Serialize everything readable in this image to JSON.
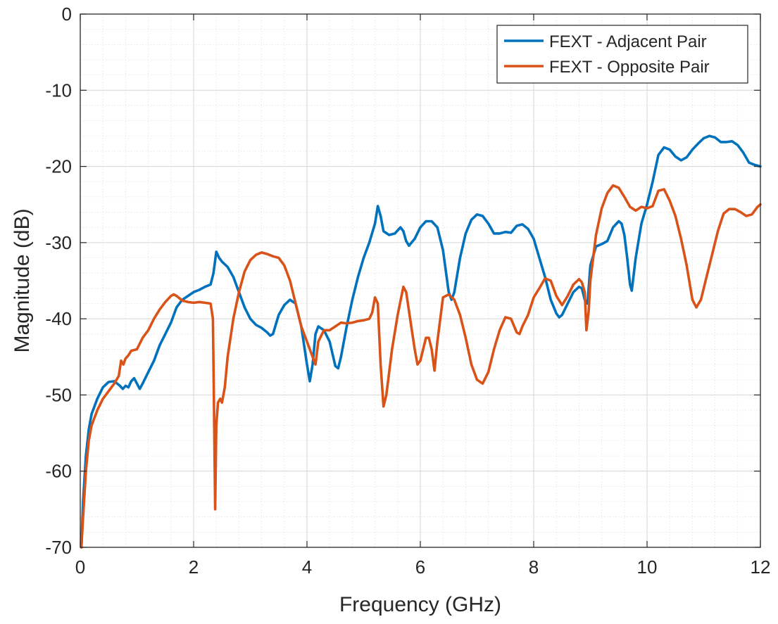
{
  "chart_data": {
    "type": "line",
    "title": "",
    "xlabel": "Frequency (GHz)",
    "ylabel": "Magnitude (dB)",
    "xlim": [
      0,
      12
    ],
    "ylim": [
      -70,
      0
    ],
    "xticks": [
      0,
      2,
      4,
      6,
      8,
      10,
      12
    ],
    "yticks": [
      0,
      -10,
      -20,
      -30,
      -40,
      -50,
      -60,
      -70
    ],
    "xtick_labels": [
      "0",
      "2",
      "4",
      "6",
      "8",
      "10",
      "12"
    ],
    "ytick_labels": [
      "0",
      "-10",
      "-20",
      "-30",
      "-40",
      "-50",
      "-60",
      "-70"
    ],
    "grid": true,
    "minor_grid": true,
    "legend_position": "top-right",
    "series": [
      {
        "name": "FEXT - Adjacent Pair",
        "color": "#0072BD",
        "points": [
          [
            0.02,
            -70
          ],
          [
            0.05,
            -64
          ],
          [
            0.1,
            -58
          ],
          [
            0.15,
            -54.5
          ],
          [
            0.2,
            -52.5
          ],
          [
            0.3,
            -50.5
          ],
          [
            0.4,
            -49
          ],
          [
            0.5,
            -48.3
          ],
          [
            0.6,
            -48.2
          ],
          [
            0.7,
            -48.8
          ],
          [
            0.75,
            -49.2
          ],
          [
            0.8,
            -48.8
          ],
          [
            0.85,
            -49
          ],
          [
            0.9,
            -48.2
          ],
          [
            0.95,
            -47.8
          ],
          [
            1.0,
            -48.5
          ],
          [
            1.05,
            -49.2
          ],
          [
            1.1,
            -48.5
          ],
          [
            1.2,
            -47
          ],
          [
            1.3,
            -45.5
          ],
          [
            1.4,
            -43.5
          ],
          [
            1.5,
            -42
          ],
          [
            1.6,
            -40.5
          ],
          [
            1.7,
            -38.5
          ],
          [
            1.8,
            -37.5
          ],
          [
            1.9,
            -37
          ],
          [
            2.0,
            -36.5
          ],
          [
            2.1,
            -36.2
          ],
          [
            2.2,
            -35.8
          ],
          [
            2.3,
            -35.5
          ],
          [
            2.35,
            -34
          ],
          [
            2.4,
            -31.2
          ],
          [
            2.45,
            -32
          ],
          [
            2.5,
            -32.5
          ],
          [
            2.6,
            -33.2
          ],
          [
            2.7,
            -34.5
          ],
          [
            2.8,
            -36.5
          ],
          [
            2.9,
            -38.5
          ],
          [
            3.0,
            -40
          ],
          [
            3.1,
            -40.8
          ],
          [
            3.2,
            -41.2
          ],
          [
            3.3,
            -41.8
          ],
          [
            3.35,
            -42.2
          ],
          [
            3.4,
            -42
          ],
          [
            3.5,
            -39.5
          ],
          [
            3.6,
            -38.2
          ],
          [
            3.7,
            -37.5
          ],
          [
            3.8,
            -38
          ],
          [
            3.9,
            -41
          ],
          [
            4.0,
            -46
          ],
          [
            4.05,
            -48.2
          ],
          [
            4.1,
            -46
          ],
          [
            4.15,
            -42
          ],
          [
            4.2,
            -41
          ],
          [
            4.3,
            -41.5
          ],
          [
            4.4,
            -43
          ],
          [
            4.5,
            -46.2
          ],
          [
            4.55,
            -46.5
          ],
          [
            4.6,
            -45
          ],
          [
            4.7,
            -41
          ],
          [
            4.8,
            -37.5
          ],
          [
            4.9,
            -34.5
          ],
          [
            5.0,
            -32
          ],
          [
            5.1,
            -30
          ],
          [
            5.2,
            -27.5
          ],
          [
            5.25,
            -25.2
          ],
          [
            5.3,
            -26.5
          ],
          [
            5.35,
            -28.5
          ],
          [
            5.45,
            -29
          ],
          [
            5.55,
            -28.8
          ],
          [
            5.65,
            -28
          ],
          [
            5.7,
            -28.5
          ],
          [
            5.75,
            -29.8
          ],
          [
            5.8,
            -30.4
          ],
          [
            5.9,
            -29.5
          ],
          [
            6.0,
            -28
          ],
          [
            6.1,
            -27.2
          ],
          [
            6.2,
            -27.2
          ],
          [
            6.3,
            -28
          ],
          [
            6.4,
            -31
          ],
          [
            6.5,
            -36.5
          ],
          [
            6.55,
            -37.5
          ],
          [
            6.6,
            -36.5
          ],
          [
            6.7,
            -32
          ],
          [
            6.8,
            -28.8
          ],
          [
            6.9,
            -27
          ],
          [
            7.0,
            -26.3
          ],
          [
            7.1,
            -26.5
          ],
          [
            7.2,
            -27.5
          ],
          [
            7.3,
            -28.8
          ],
          [
            7.4,
            -28.8
          ],
          [
            7.5,
            -28.6
          ],
          [
            7.6,
            -28.7
          ],
          [
            7.7,
            -27.8
          ],
          [
            7.8,
            -27.6
          ],
          [
            7.9,
            -28.2
          ],
          [
            8.0,
            -29.5
          ],
          [
            8.1,
            -32
          ],
          [
            8.2,
            -34.5
          ],
          [
            8.3,
            -37.5
          ],
          [
            8.4,
            -39.3
          ],
          [
            8.45,
            -39.8
          ],
          [
            8.5,
            -39.5
          ],
          [
            8.6,
            -38
          ],
          [
            8.7,
            -36.5
          ],
          [
            8.8,
            -35.8
          ],
          [
            8.85,
            -36
          ],
          [
            8.9,
            -37.5
          ],
          [
            8.95,
            -38
          ],
          [
            9.0,
            -33
          ],
          [
            9.1,
            -30.5
          ],
          [
            9.2,
            -30.2
          ],
          [
            9.3,
            -29.8
          ],
          [
            9.4,
            -28
          ],
          [
            9.5,
            -27.2
          ],
          [
            9.55,
            -27.5
          ],
          [
            9.6,
            -29
          ],
          [
            9.65,
            -32
          ],
          [
            9.7,
            -35.5
          ],
          [
            9.73,
            -36.3
          ],
          [
            9.8,
            -32
          ],
          [
            9.9,
            -27.5
          ],
          [
            10.0,
            -25
          ],
          [
            10.1,
            -22
          ],
          [
            10.2,
            -18.5
          ],
          [
            10.3,
            -17.5
          ],
          [
            10.4,
            -17.8
          ],
          [
            10.5,
            -18.7
          ],
          [
            10.6,
            -19.2
          ],
          [
            10.7,
            -18.8
          ],
          [
            10.8,
            -17.8
          ],
          [
            10.9,
            -17
          ],
          [
            11.0,
            -16.3
          ],
          [
            11.1,
            -16
          ],
          [
            11.2,
            -16.2
          ],
          [
            11.3,
            -16.8
          ],
          [
            11.4,
            -16.8
          ],
          [
            11.5,
            -16.7
          ],
          [
            11.6,
            -17.2
          ],
          [
            11.7,
            -18.2
          ],
          [
            11.8,
            -19.5
          ],
          [
            11.9,
            -19.8
          ],
          [
            12.0,
            -20
          ]
        ]
      },
      {
        "name": "FEXT - Opposite Pair",
        "color": "#D95319",
        "points": [
          [
            0.02,
            -70
          ],
          [
            0.05,
            -66
          ],
          [
            0.1,
            -60
          ],
          [
            0.15,
            -56
          ],
          [
            0.2,
            -54
          ],
          [
            0.3,
            -52
          ],
          [
            0.4,
            -50.5
          ],
          [
            0.5,
            -49.5
          ],
          [
            0.6,
            -48.5
          ],
          [
            0.68,
            -47.5
          ],
          [
            0.72,
            -45.5
          ],
          [
            0.76,
            -46
          ],
          [
            0.8,
            -45.2
          ],
          [
            0.85,
            -44.8
          ],
          [
            0.9,
            -44.2
          ],
          [
            1.0,
            -44
          ],
          [
            1.1,
            -42.5
          ],
          [
            1.2,
            -41.5
          ],
          [
            1.3,
            -40
          ],
          [
            1.4,
            -38.8
          ],
          [
            1.5,
            -37.8
          ],
          [
            1.6,
            -37
          ],
          [
            1.65,
            -36.8
          ],
          [
            1.7,
            -37
          ],
          [
            1.8,
            -37.6
          ],
          [
            1.9,
            -37.8
          ],
          [
            2.0,
            -37.9
          ],
          [
            2.1,
            -37.8
          ],
          [
            2.2,
            -37.9
          ],
          [
            2.3,
            -38
          ],
          [
            2.34,
            -40
          ],
          [
            2.36,
            -52
          ],
          [
            2.38,
            -65
          ],
          [
            2.4,
            -54
          ],
          [
            2.43,
            -51
          ],
          [
            2.47,
            -50.5
          ],
          [
            2.5,
            -51
          ],
          [
            2.55,
            -49
          ],
          [
            2.6,
            -45
          ],
          [
            2.7,
            -40
          ],
          [
            2.8,
            -36.5
          ],
          [
            2.9,
            -33.8
          ],
          [
            3.0,
            -32.3
          ],
          [
            3.1,
            -31.6
          ],
          [
            3.2,
            -31.3
          ],
          [
            3.3,
            -31.5
          ],
          [
            3.4,
            -31.8
          ],
          [
            3.5,
            -32
          ],
          [
            3.6,
            -33
          ],
          [
            3.7,
            -35
          ],
          [
            3.8,
            -38
          ],
          [
            3.9,
            -41
          ],
          [
            4.0,
            -43
          ],
          [
            4.1,
            -45
          ],
          [
            4.15,
            -46
          ],
          [
            4.2,
            -43
          ],
          [
            4.3,
            -41.5
          ],
          [
            4.4,
            -41.5
          ],
          [
            4.5,
            -41
          ],
          [
            4.6,
            -40.5
          ],
          [
            4.7,
            -40.6
          ],
          [
            4.8,
            -40.5
          ],
          [
            4.9,
            -40.3
          ],
          [
            5.0,
            -40.2
          ],
          [
            5.1,
            -40
          ],
          [
            5.15,
            -39.2
          ],
          [
            5.2,
            -37.2
          ],
          [
            5.25,
            -38
          ],
          [
            5.3,
            -46
          ],
          [
            5.35,
            -51.5
          ],
          [
            5.4,
            -50
          ],
          [
            5.5,
            -44
          ],
          [
            5.6,
            -39.5
          ],
          [
            5.7,
            -35.8
          ],
          [
            5.75,
            -36.5
          ],
          [
            5.8,
            -39
          ],
          [
            5.9,
            -44
          ],
          [
            5.95,
            -46
          ],
          [
            6.0,
            -45.5
          ],
          [
            6.1,
            -42.5
          ],
          [
            6.15,
            -42.5
          ],
          [
            6.2,
            -44
          ],
          [
            6.25,
            -46.8
          ],
          [
            6.3,
            -43
          ],
          [
            6.4,
            -37.2
          ],
          [
            6.5,
            -36.8
          ],
          [
            6.6,
            -37.5
          ],
          [
            6.7,
            -39.5
          ],
          [
            6.8,
            -42.5
          ],
          [
            6.9,
            -46
          ],
          [
            7.0,
            -48
          ],
          [
            7.1,
            -48.5
          ],
          [
            7.2,
            -47
          ],
          [
            7.3,
            -44
          ],
          [
            7.4,
            -41.5
          ],
          [
            7.5,
            -39.8
          ],
          [
            7.6,
            -40
          ],
          [
            7.7,
            -41.8
          ],
          [
            7.75,
            -42
          ],
          [
            7.8,
            -41
          ],
          [
            7.9,
            -39.5
          ],
          [
            8.0,
            -37.2
          ],
          [
            8.1,
            -36
          ],
          [
            8.2,
            -34.7
          ],
          [
            8.3,
            -35
          ],
          [
            8.4,
            -37
          ],
          [
            8.5,
            -38.2
          ],
          [
            8.6,
            -37
          ],
          [
            8.7,
            -35.5
          ],
          [
            8.8,
            -34.8
          ],
          [
            8.85,
            -35.2
          ],
          [
            8.9,
            -36.5
          ],
          [
            8.93,
            -41.5
          ],
          [
            8.97,
            -39
          ],
          [
            9.0,
            -35
          ],
          [
            9.1,
            -29
          ],
          [
            9.2,
            -25.5
          ],
          [
            9.3,
            -23.5
          ],
          [
            9.4,
            -22.5
          ],
          [
            9.5,
            -22.8
          ],
          [
            9.6,
            -24
          ],
          [
            9.7,
            -25.3
          ],
          [
            9.8,
            -25.8
          ],
          [
            9.9,
            -25.3
          ],
          [
            10.0,
            -25.5
          ],
          [
            10.1,
            -25.2
          ],
          [
            10.2,
            -23.2
          ],
          [
            10.3,
            -23
          ],
          [
            10.4,
            -24.5
          ],
          [
            10.5,
            -26.5
          ],
          [
            10.6,
            -29.5
          ],
          [
            10.7,
            -33
          ],
          [
            10.8,
            -37.5
          ],
          [
            10.87,
            -38.5
          ],
          [
            10.95,
            -37.5
          ],
          [
            11.05,
            -34.5
          ],
          [
            11.15,
            -31.5
          ],
          [
            11.25,
            -28.5
          ],
          [
            11.35,
            -26.2
          ],
          [
            11.45,
            -25.6
          ],
          [
            11.55,
            -25.6
          ],
          [
            11.65,
            -26
          ],
          [
            11.75,
            -26.5
          ],
          [
            11.85,
            -26.3
          ],
          [
            11.95,
            -25.3
          ],
          [
            12.0,
            -25
          ]
        ]
      }
    ]
  }
}
